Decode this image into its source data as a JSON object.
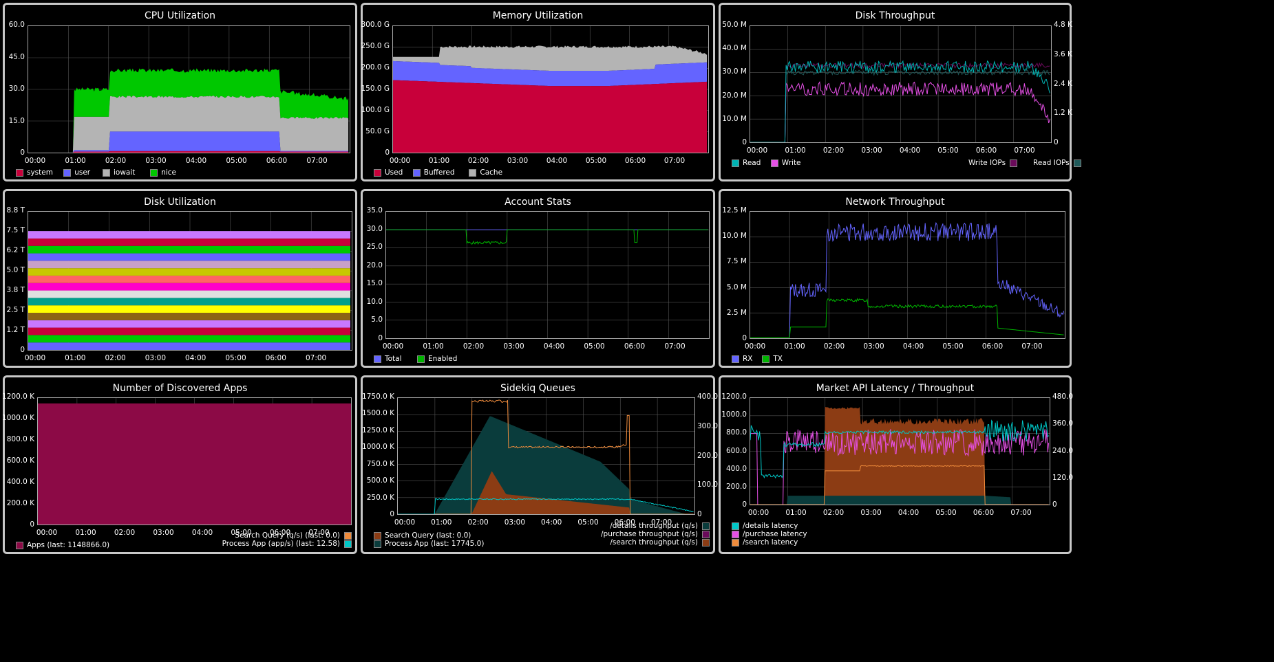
{
  "time_ticks": [
    "00:00",
    "01:00",
    "02:00",
    "03:00",
    "04:00",
    "05:00",
    "06:00",
    "07:00"
  ],
  "panels": {
    "cpu": {
      "title": "CPU Utilization",
      "y_ticks": [
        "60.0",
        "45.0",
        "30.0",
        "15.0",
        "0"
      ],
      "legend": [
        {
          "label": "system",
          "color": "#c8003a"
        },
        {
          "label": "user",
          "color": "#6464ff"
        },
        {
          "label": "iowait",
          "color": "#b4b4b4"
        },
        {
          "label": "nice",
          "color": "#00c800"
        }
      ]
    },
    "memory": {
      "title": "Memory Utilization",
      "y_ticks": [
        "300.0 G",
        "250.0 G",
        "200.0 G",
        "150.0 G",
        "100.0 G",
        "50.0 G",
        "0"
      ],
      "legend": [
        {
          "label": "Used",
          "color": "#c8003a"
        },
        {
          "label": "Buffered",
          "color": "#6464ff"
        },
        {
          "label": "Cache",
          "color": "#b4b4b4"
        }
      ]
    },
    "disk_throughput": {
      "title": "Disk Throughput",
      "y_ticks": [
        "50.0 M",
        "40.0 M",
        "30.0 M",
        "20.0 M",
        "10.0 M",
        "0"
      ],
      "y_ticks_right": [
        "4.8 K",
        "3.6 K",
        "2.4 K",
        "1.2 K",
        "0"
      ],
      "legend_left": [
        {
          "label": "Read",
          "color": "#00b4b4"
        },
        {
          "label": "Write",
          "color": "#e650e6"
        }
      ],
      "legend_right": [
        {
          "label": "Write IOPs",
          "color": "#6a0a5a"
        },
        {
          "label": "Read IOPs",
          "color": "#1e5a5a"
        }
      ]
    },
    "disk_util": {
      "title": "Disk Utilization",
      "y_ticks": [
        "8.8 T",
        "7.5 T",
        "6.2 T",
        "5.0 T",
        "3.8 T",
        "2.5 T",
        "1.2 T",
        "0"
      ]
    },
    "account": {
      "title": "Account Stats",
      "y_ticks": [
        "35.0",
        "30.0",
        "25.0",
        "20.0",
        "15.0",
        "10.0",
        "5.0",
        "0"
      ],
      "legend": [
        {
          "label": "Total",
          "color": "#6464ff"
        },
        {
          "label": "Enabled",
          "color": "#00b400"
        }
      ]
    },
    "network": {
      "title": "Network Throughput",
      "y_ticks": [
        "12.5 M",
        "10.0 M",
        "7.5 M",
        "5.0 M",
        "2.5 M",
        "0"
      ],
      "legend": [
        {
          "label": "RX",
          "color": "#6464ff"
        },
        {
          "label": "TX",
          "color": "#00b400"
        }
      ]
    },
    "apps": {
      "title": "Number of Discovered Apps",
      "y_ticks": [
        "1200.0 K",
        "1000.0 K",
        "800.0 K",
        "600.0 K",
        "400.0 K",
        "200.0 K",
        "0"
      ],
      "legend": [
        {
          "label": "Apps (last: 1148866.0)",
          "color": "#8c0a46"
        }
      ]
    },
    "sidekiq": {
      "title": "Sidekiq Queues",
      "y_ticks": [
        "1750.0 K",
        "1500.0 K",
        "1250.0 K",
        "1000.0 K",
        "750.0 K",
        "500.0 K",
        "250.0 K",
        "0"
      ],
      "y_ticks_right": [
        "400.0",
        "300.0",
        "200.0",
        "100.0",
        "0"
      ],
      "legend_left": [
        {
          "label": "Search Query (last: 0.0)",
          "color": "#8c3c14"
        },
        {
          "label": "Process App (last: 17745.0)",
          "color": "#0a3c3c"
        }
      ],
      "legend_right": [
        {
          "label": "Search Query (q/s) (last: 0.0)",
          "color": "#f08c3c"
        },
        {
          "label": "Process App (app/s) (last: 12.58)",
          "color": "#00c8c8"
        }
      ]
    },
    "market": {
      "title": "Market API Latency / Throughput",
      "y_ticks": [
        "1200.0",
        "1000.0",
        "800.0",
        "600.0",
        "400.0",
        "200.0",
        "0"
      ],
      "y_ticks_right": [
        "480.0",
        "360.0",
        "240.0",
        "120.0",
        "0"
      ],
      "legend_left": [
        {
          "label": "/details latency",
          "color": "#00c8c8"
        },
        {
          "label": "/purchase latency",
          "color": "#e650e6"
        },
        {
          "label": "/search latency",
          "color": "#f08c3c"
        }
      ],
      "legend_right": [
        {
          "label": "/details throughput (q/s)",
          "color": "#0a3c3c"
        },
        {
          "label": "/purchase throughput (q/s)",
          "color": "#6a0a5a"
        },
        {
          "label": "/search throughput (q/s)",
          "color": "#8c3c14"
        }
      ]
    }
  },
  "disk_util_band_colors": [
    "#6464ff",
    "#00c800",
    "#c8003a",
    "#c878ff",
    "#8c6414",
    "#ffff00",
    "#00a08c",
    "#e0e0e0",
    "#ff00c8",
    "#ff6464",
    "#c8c800",
    "#c8a0c8",
    "#6464ff",
    "#00c800",
    "#c8003a",
    "#c878ff"
  ]
}
